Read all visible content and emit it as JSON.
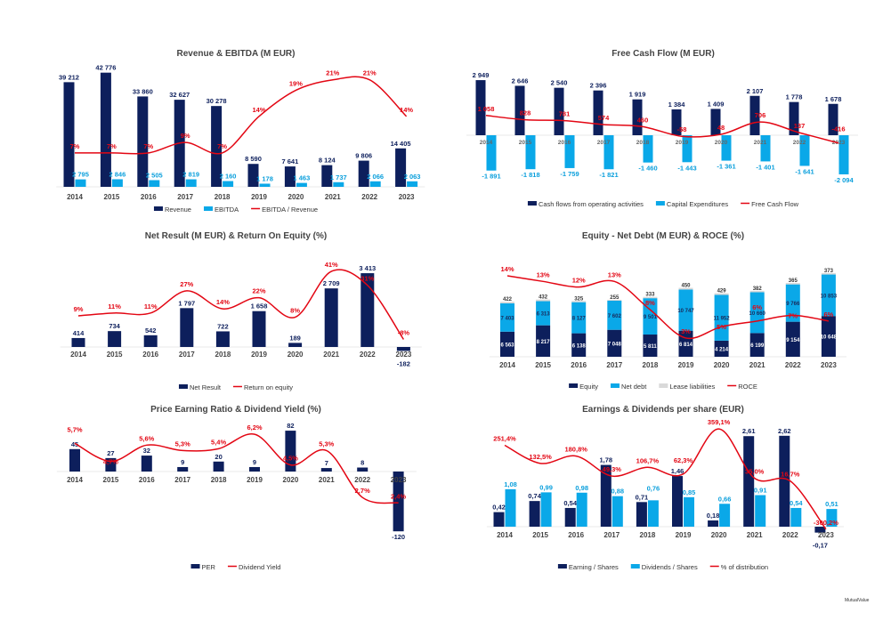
{
  "chart_data": [
    {
      "type": "bar+line",
      "title": "Revenue & EBITDA (M EUR)",
      "categories": [
        "2014",
        "2015",
        "2016",
        "2017",
        "2018",
        "2019",
        "2020",
        "2021",
        "2022",
        "2023"
      ],
      "series": [
        {
          "name": "Revenue",
          "kind": "bar",
          "color": "#0d1f5c",
          "values": [
            39212,
            42776,
            33860,
            32627,
            30278,
            8590,
            7641,
            8124,
            9806,
            14405
          ]
        },
        {
          "name": "EBITDA",
          "kind": "bar",
          "color": "#0aa8e8",
          "values": [
            2795,
            2846,
            2505,
            2819,
            2160,
            1178,
            1463,
            1737,
            2066,
            2063
          ]
        },
        {
          "name": "EBITDA / Revenue",
          "kind": "line",
          "unit": "%",
          "color": "#e30613",
          "values": [
            7,
            7,
            7,
            9,
            7,
            14,
            19,
            21,
            21,
            14
          ]
        }
      ],
      "legend": "bottom"
    },
    {
      "type": "bar+line",
      "title": "Free Cash Flow (M EUR)",
      "categories": [
        "2014",
        "2015",
        "2016",
        "2017",
        "2018",
        "2019",
        "2020",
        "2021",
        "2022",
        "2023"
      ],
      "series": [
        {
          "name": "Cash flows from operating activities",
          "kind": "bar",
          "color": "#0d1f5c",
          "values": [
            2949,
            2646,
            2540,
            2396,
            1919,
            1384,
            1409,
            2107,
            1778,
            1678
          ]
        },
        {
          "name": "Capital Expenditures",
          "kind": "bar",
          "color": "#0aa8e8",
          "values": [
            -1891,
            -1818,
            -1759,
            -1821,
            -1460,
            -1443,
            -1361,
            -1401,
            -1641,
            -2094
          ]
        },
        {
          "name": "Free Cash Flow",
          "kind": "line",
          "color": "#e30613",
          "values": [
            1058,
            828,
            781,
            574,
            460,
            -58,
            48,
            706,
            137,
            -416
          ]
        }
      ],
      "legend": "bottom"
    },
    {
      "type": "bar+line",
      "title": "Net Result (M EUR) & Return On Equity (%)",
      "categories": [
        "2014",
        "2015",
        "2016",
        "2017",
        "2018",
        "2019",
        "2020",
        "2021",
        "2022",
        "2023"
      ],
      "series": [
        {
          "name": "Net Result",
          "kind": "bar",
          "color": "#0d1f5c",
          "values": [
            414,
            734,
            542,
            1797,
            722,
            1658,
            189,
            2709,
            3413,
            -182
          ]
        },
        {
          "name": "Return on equity",
          "kind": "line",
          "unit": "%",
          "color": "#e30613",
          "values": [
            9,
            11,
            11,
            27,
            14,
            22,
            8,
            41,
            31,
            -8
          ]
        }
      ],
      "legend": "bottom"
    },
    {
      "type": "stacked-bar+line",
      "title": "Equity - Net Debt (M EUR) & ROCE (%)",
      "categories": [
        "2014",
        "2015",
        "2016",
        "2017",
        "2018",
        "2019",
        "2020",
        "2021",
        "2022",
        "2023"
      ],
      "series": [
        {
          "name": "Equity",
          "kind": "bar",
          "color": "#0d1f5c",
          "values": [
            6563,
            8217,
            6138,
            7048,
            5811,
            6814,
            4214,
            6199,
            9154,
            10648
          ]
        },
        {
          "name": "Net debt",
          "kind": "bar",
          "color": "#0aa8e8",
          "values": [
            7403,
            6313,
            8127,
            7602,
            9501,
            10747,
            11952,
            10660,
            9766,
            10853
          ]
        },
        {
          "name": "Lease liabilities",
          "kind": "bar",
          "color": "#d9d9d9",
          "values": [
            422,
            432,
            325,
            255,
            333,
            450,
            429,
            382,
            365,
            373
          ]
        },
        {
          "name": "ROCE",
          "kind": "line",
          "unit": "%",
          "color": "#e30613",
          "values": [
            14,
            13,
            12,
            13,
            8,
            3,
            5,
            6,
            7,
            6
          ]
        }
      ],
      "legend": "bottom"
    },
    {
      "type": "bar+line",
      "title": "Price Earning Ratio & Dividend Yield (%)",
      "categories": [
        "2014",
        "2015",
        "2016",
        "2017",
        "2018",
        "2019",
        "2020",
        "2021",
        "2022",
        "2023"
      ],
      "series": [
        {
          "name": "PER",
          "kind": "bar",
          "color": "#0d1f5c",
          "values": [
            45,
            27,
            32,
            9,
            20,
            9,
            82,
            7,
            8,
            -120
          ]
        },
        {
          "name": "Dividend Yield",
          "kind": "line",
          "unit": "%",
          "color": "#e30613",
          "values": [
            5.7,
            4.7,
            5.6,
            5.3,
            5.4,
            6.2,
            4.5,
            5.3,
            2.7,
            2.4
          ]
        }
      ],
      "legend": "bottom"
    },
    {
      "type": "bar+line",
      "title": "Earnings & Dividends per share (EUR)",
      "categories": [
        "2014",
        "2015",
        "2016",
        "2017",
        "2018",
        "2019",
        "2020",
        "2021",
        "2022",
        "2023"
      ],
      "series": [
        {
          "name": "Earning / Shares",
          "kind": "bar",
          "color": "#0d1f5c",
          "values": [
            0.42,
            0.74,
            0.54,
            1.78,
            0.71,
            1.46,
            0.18,
            2.61,
            2.62,
            -0.17
          ]
        },
        {
          "name": "Dividends / Shares",
          "kind": "bar",
          "color": "#0aa8e8",
          "values": [
            1.08,
            0.99,
            0.98,
            0.88,
            0.76,
            0.85,
            0.66,
            0.91,
            0.54,
            0.51
          ]
        },
        {
          "name": "% of distribution",
          "kind": "line",
          "unit": "%",
          "color": "#e30613",
          "values": [
            251.4,
            132.5,
            180.8,
            49.3,
            106.7,
            62.3,
            359.1,
            35.0,
            16.7,
            -300.2
          ]
        }
      ],
      "legend": "bottom"
    }
  ],
  "footer": "MutualValue"
}
